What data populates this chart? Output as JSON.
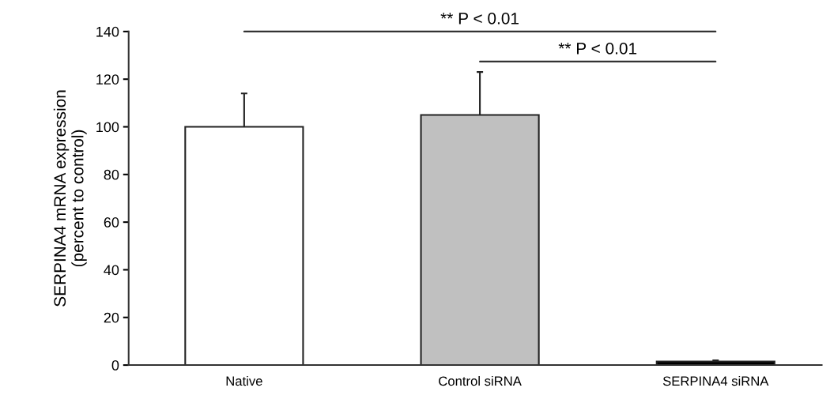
{
  "chart_data": {
    "type": "bar",
    "ylabel": "SERPINA4 mRNA expression\n(percent to control)",
    "categories": [
      "Native",
      "Control siRNA",
      "SERPINA4 siRNA"
    ],
    "values": [
      100,
      105,
      1.5
    ],
    "colors": [
      "#ffffff",
      "#c0c0c0",
      "#000000"
    ],
    "errors": [
      [
        100,
        114
      ],
      [
        105,
        123
      ],
      [
        1.5,
        2
      ]
    ],
    "ylim": [
      0,
      140
    ],
    "yticks": [
      0,
      20,
      40,
      60,
      80,
      100,
      120,
      140
    ],
    "grid": false,
    "legend": false,
    "annotations": [
      "** P < 0.01",
      "** P < 0.01"
    ]
  }
}
